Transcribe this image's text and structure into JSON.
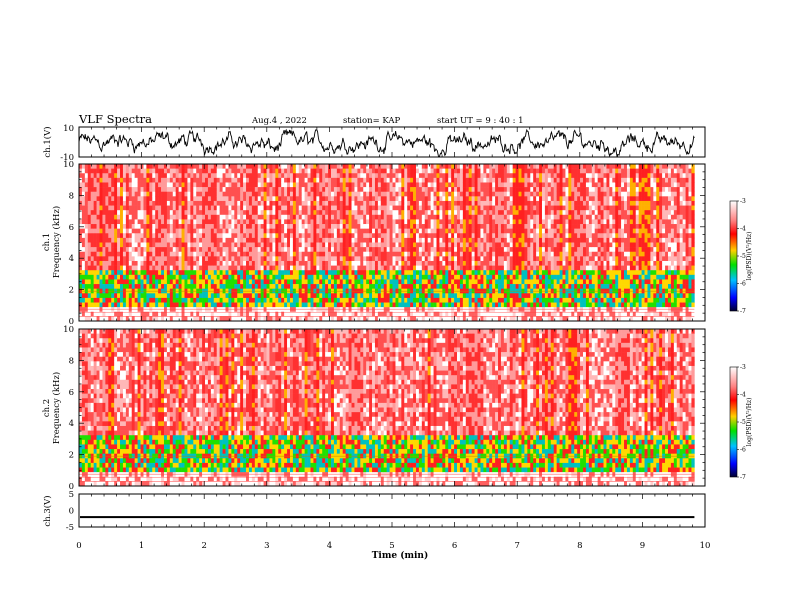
{
  "header": {
    "title": "VLF Spectra",
    "date": "Aug.4 , 2022",
    "station": "station= KAP",
    "start": "start UT = 9 : 40 : 1"
  },
  "chart_data": {
    "type": "heatmap",
    "xlabel": "Time (min)",
    "xlim": [
      0,
      10
    ],
    "xticks": [
      "0",
      "1",
      "2",
      "3",
      "4",
      "5",
      "6",
      "7",
      "8",
      "9",
      "10"
    ],
    "panels": [
      {
        "name": "ch1-waveform",
        "type": "line",
        "ylabel": "ch.1(V)",
        "ylim": [
          -10,
          10
        ],
        "yticks": [
          "10",
          "-10"
        ],
        "approx_trace_range": [
          -8,
          8
        ]
      },
      {
        "name": "ch1-spectrogram",
        "type": "heatmap",
        "ylabel": "ch.1 Frequency (kHz)",
        "ylim": [
          0,
          10
        ],
        "yticks": [
          "0",
          "2",
          "4",
          "6",
          "8",
          "10"
        ],
        "low_band_khz": [
          1,
          3
        ],
        "colorbar": {
          "label": "log(PSD)(V²/Hz)",
          "range": [
            -7,
            -3
          ],
          "ticks": [
            "-3",
            "-4",
            "-5",
            "-6",
            "-7"
          ]
        }
      },
      {
        "name": "ch2-spectrogram",
        "type": "heatmap",
        "ylabel": "ch.2 Frequency (kHz)",
        "ylim": [
          0,
          10
        ],
        "yticks": [
          "0",
          "2",
          "4",
          "6",
          "8",
          "10"
        ],
        "low_band_khz": [
          1,
          3
        ],
        "colorbar": {
          "label": "log(PSD)(V²/Hz)",
          "range": [
            -7,
            -3
          ],
          "ticks": [
            "-3",
            "-4",
            "-5",
            "-6",
            "-7"
          ]
        }
      },
      {
        "name": "ch3-waveform",
        "type": "line",
        "ylabel": "ch.3(V)",
        "ylim": [
          -5,
          5
        ],
        "yticks": [
          "5",
          "0",
          "-5"
        ],
        "approx_trace_level": -2,
        "approx_trace_band": [
          -2.3,
          -1.7
        ]
      }
    ],
    "data_end_min": 9.83,
    "colors": {
      "strong": "#ff2020",
      "mid": "#ffe000",
      "low": "#20e000",
      "lowest": "#0020ff",
      "trace": "#000000"
    }
  }
}
